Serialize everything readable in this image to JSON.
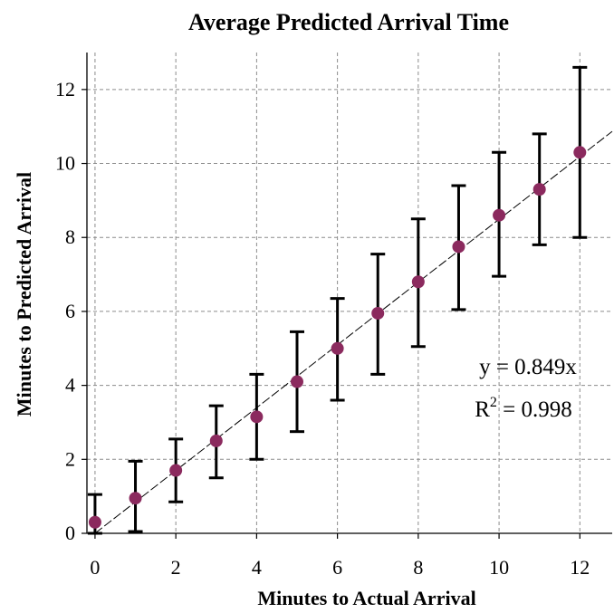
{
  "chart_data": {
    "type": "scatter",
    "title": "Average Predicted Arrival Time",
    "xlabel": "Minutes to Actual Arrival",
    "ylabel": "Minutes to Predicted Arrival",
    "xlim": [
      -0.2,
      12.8
    ],
    "ylim": [
      0,
      13
    ],
    "xticks": [
      0,
      2,
      4,
      6,
      8,
      10,
      12
    ],
    "yticks": [
      0,
      2,
      4,
      6,
      8,
      10,
      12
    ],
    "grid": true,
    "series": [
      {
        "x": [
          0,
          1,
          2,
          3,
          4,
          5,
          6,
          7,
          8,
          9,
          10,
          11,
          12
        ],
        "y": [
          0.3,
          0.95,
          1.7,
          2.5,
          3.15,
          4.1,
          5.0,
          5.95,
          6.8,
          7.75,
          8.6,
          9.3,
          10.3
        ],
        "y_low": [
          0.0,
          0.05,
          0.85,
          1.5,
          2.0,
          2.75,
          3.6,
          4.3,
          5.05,
          6.05,
          6.95,
          7.8,
          8.0
        ],
        "y_high": [
          1.05,
          1.95,
          2.55,
          3.45,
          4.3,
          5.45,
          6.35,
          7.55,
          8.5,
          9.4,
          10.3,
          10.8,
          12.6
        ],
        "color": "#8b2a5e"
      }
    ],
    "trendline": {
      "slope": 0.849,
      "equation": "y = 0.849x",
      "r2_label": "R",
      "r2_sup": "2",
      "r2_value": " = 0.998"
    }
  }
}
